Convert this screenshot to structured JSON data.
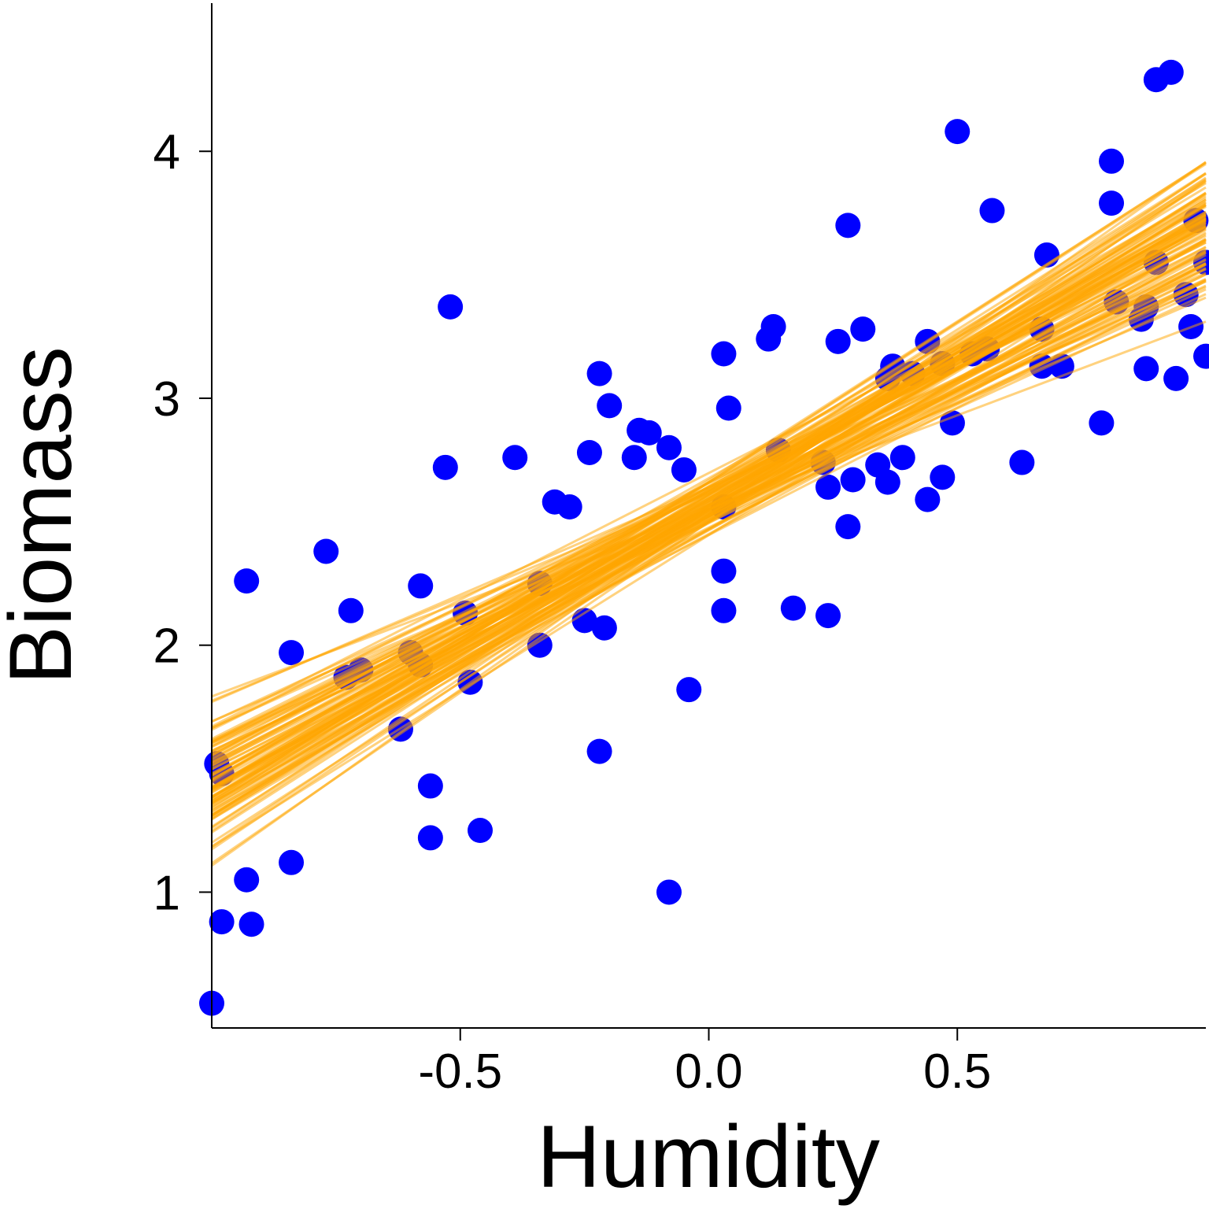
{
  "chart_data": {
    "type": "scatter",
    "xlabel": "Humidity",
    "ylabel": "Biomass",
    "xlim": [
      -1.0,
      1.0
    ],
    "ylim": [
      0.45,
      4.6
    ],
    "xticks": [
      "-0.5",
      "0.0",
      "0.5"
    ],
    "xtick_values": [
      -0.5,
      0.0,
      0.5
    ],
    "yticks": [
      "1",
      "2",
      "3",
      "4"
    ],
    "ytick_values": [
      1,
      2,
      3,
      4
    ],
    "grid": false,
    "point_color": "#0000ff",
    "line_color": "#ffa500",
    "points": [
      [
        -1.0,
        0.55
      ],
      [
        -0.98,
        0.88
      ],
      [
        -0.93,
        1.05
      ],
      [
        -0.92,
        0.87
      ],
      [
        -0.93,
        2.26
      ],
      [
        -0.84,
        1.12
      ],
      [
        -0.84,
        1.97
      ],
      [
        -0.77,
        2.38
      ],
      [
        -0.72,
        2.14
      ],
      [
        -0.73,
        1.87
      ],
      [
        -0.7,
        1.9
      ],
      [
        -0.62,
        1.66
      ],
      [
        -0.6,
        1.97
      ],
      [
        -0.58,
        1.92
      ],
      [
        -0.58,
        2.24
      ],
      [
        -0.56,
        1.43
      ],
      [
        -0.56,
        1.22
      ],
      [
        -0.53,
        2.72
      ],
      [
        -0.52,
        3.37
      ],
      [
        -0.49,
        2.13
      ],
      [
        -0.48,
        1.85
      ],
      [
        -0.46,
        1.25
      ],
      [
        -0.39,
        2.76
      ],
      [
        -0.34,
        2.25
      ],
      [
        -0.34,
        2.0
      ],
      [
        -0.31,
        2.58
      ],
      [
        -0.28,
        2.56
      ],
      [
        -0.25,
        2.1
      ],
      [
        -0.24,
        2.78
      ],
      [
        -0.22,
        3.1
      ],
      [
        -0.22,
        1.57
      ],
      [
        -0.21,
        2.07
      ],
      [
        -0.2,
        2.97
      ],
      [
        -0.15,
        2.76
      ],
      [
        -0.14,
        2.87
      ],
      [
        -0.12,
        2.86
      ],
      [
        -0.08,
        2.8
      ],
      [
        -0.08,
        1.0
      ],
      [
        -0.05,
        2.71
      ],
      [
        -0.04,
        1.82
      ],
      [
        0.03,
        2.56
      ],
      [
        0.03,
        3.18
      ],
      [
        0.03,
        2.3
      ],
      [
        0.03,
        2.14
      ],
      [
        0.04,
        2.96
      ],
      [
        0.12,
        3.24
      ],
      [
        0.13,
        3.29
      ],
      [
        0.14,
        2.79
      ],
      [
        0.17,
        2.15
      ],
      [
        0.23,
        2.74
      ],
      [
        0.24,
        2.12
      ],
      [
        0.24,
        2.64
      ],
      [
        0.26,
        3.23
      ],
      [
        0.28,
        2.48
      ],
      [
        0.28,
        3.7
      ],
      [
        0.29,
        2.67
      ],
      [
        0.31,
        3.28
      ],
      [
        0.34,
        2.73
      ],
      [
        0.36,
        2.66
      ],
      [
        0.36,
        3.08
      ],
      [
        0.37,
        3.13
      ],
      [
        0.39,
        2.76
      ],
      [
        0.41,
        3.1
      ],
      [
        0.44,
        3.23
      ],
      [
        0.44,
        2.59
      ],
      [
        0.47,
        3.14
      ],
      [
        0.47,
        2.68
      ],
      [
        0.49,
        2.9
      ],
      [
        0.5,
        4.08
      ],
      [
        0.53,
        3.18
      ],
      [
        0.56,
        3.2
      ],
      [
        0.57,
        3.76
      ],
      [
        0.63,
        2.74
      ],
      [
        0.67,
        3.13
      ],
      [
        0.67,
        3.28
      ],
      [
        0.68,
        3.58
      ],
      [
        0.71,
        3.13
      ],
      [
        0.79,
        2.9
      ],
      [
        0.81,
        3.96
      ],
      [
        0.81,
        3.79
      ],
      [
        0.82,
        3.39
      ],
      [
        0.87,
        3.32
      ],
      [
        0.88,
        3.37
      ],
      [
        0.88,
        3.12
      ],
      [
        0.9,
        3.55
      ],
      [
        0.9,
        4.29
      ],
      [
        0.93,
        4.32
      ],
      [
        0.94,
        3.08
      ],
      [
        0.96,
        3.42
      ],
      [
        0.97,
        3.29
      ],
      [
        0.98,
        3.72
      ],
      [
        1.0,
        3.17
      ],
      [
        1.0,
        3.55
      ],
      [
        -0.99,
        1.52
      ],
      [
        -0.98,
        1.48
      ]
    ],
    "regression_lines": {
      "intercept_mean": 2.57,
      "intercept_sd": 0.06,
      "slope_mean": 1.1,
      "slope_sd": 0.13,
      "count": 100
    }
  }
}
